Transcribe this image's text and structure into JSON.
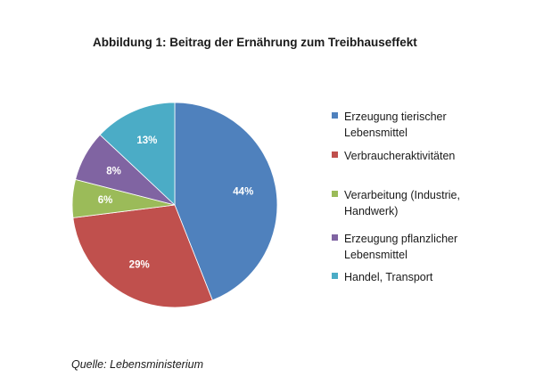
{
  "chart_data": {
    "type": "pie",
    "title": "Abbildung 1: Beitrag der Ernährung zum Treibhauseffekt",
    "slices": [
      {
        "name": "Erzeugung tierischer Lebensmittel",
        "value": 44,
        "label": "44%",
        "color": "#4f81bd"
      },
      {
        "name": "Verbraucheraktivitäten",
        "value": 29,
        "label": "29%",
        "color": "#c0504d"
      },
      {
        "name": "Verarbeitung (Industrie, Handwerk)",
        "value": 6,
        "label": "6%",
        "color": "#9bbb59"
      },
      {
        "name": "Erzeugung pflanzlicher Lebensmittel",
        "value": 8,
        "label": "8%",
        "color": "#8064a2"
      },
      {
        "name": "Handel, Transport",
        "value": 13,
        "label": "13%",
        "color": "#4bacc6"
      }
    ],
    "legend_position": "right"
  },
  "legend": [
    {
      "line1": "Erzeugung tierischer",
      "line2": "Lebensmittel",
      "color": "#4f81bd"
    },
    {
      "line1": "Verbraucheraktivitäten",
      "line2": "",
      "color": "#c0504d"
    },
    {
      "line1": "Verarbeitung (Industrie,",
      "line2": "Handwerk)",
      "color": "#9bbb59"
    },
    {
      "line1": "Erzeugung pflanzlicher",
      "line2": "Lebensmittel",
      "color": "#8064a2"
    },
    {
      "line1": "Handel, Transport",
      "line2": "",
      "color": "#4bacc6"
    }
  ],
  "source": "Quelle: Lebensministerium"
}
